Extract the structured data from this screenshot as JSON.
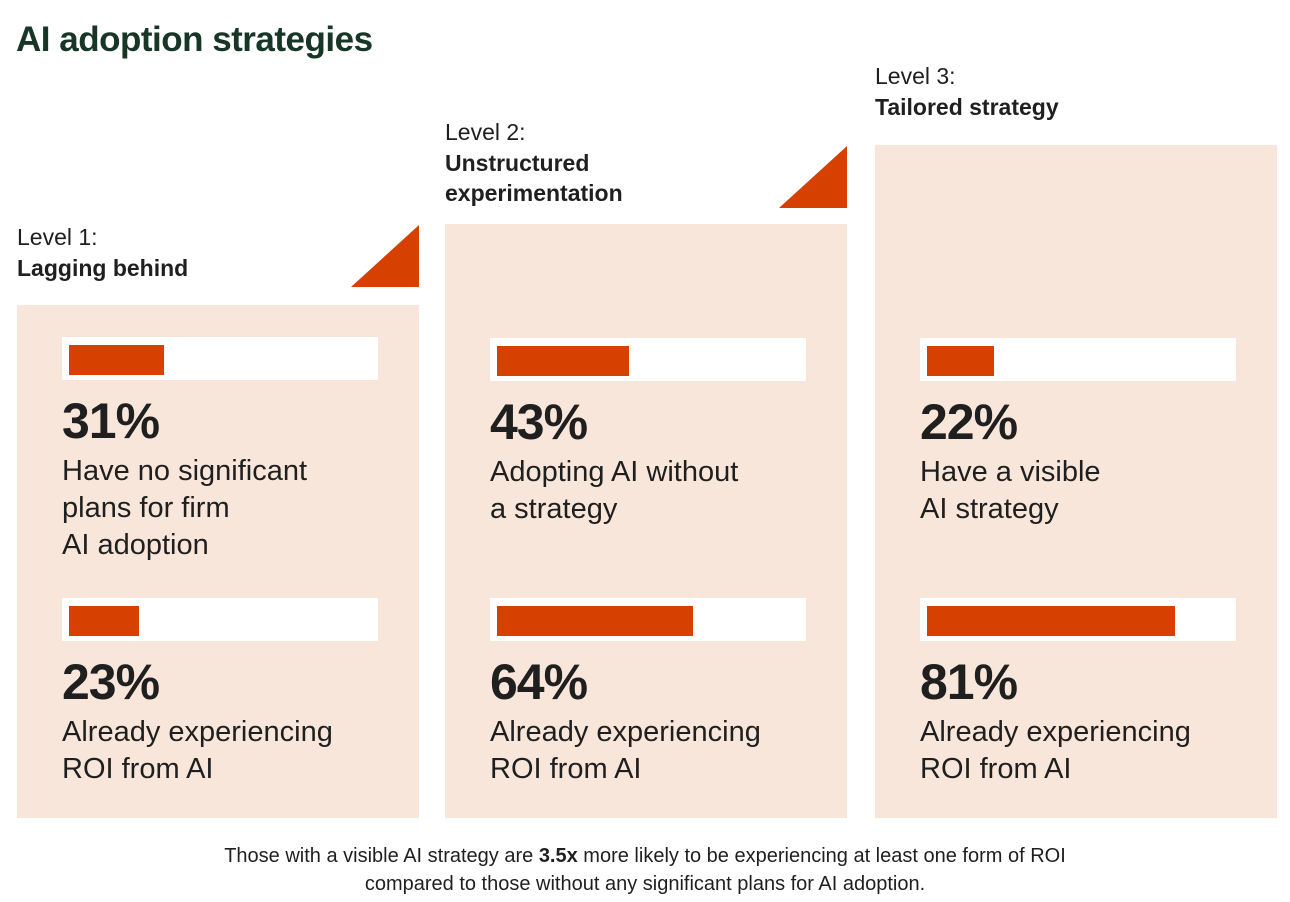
{
  "title": "AI adoption strategies",
  "colors": {
    "accent": "#d64000",
    "panel_bg": "#f8e6da",
    "title": "#173626",
    "text": "#1f1f1f"
  },
  "chart_data": {
    "type": "bar",
    "title": "AI adoption strategies",
    "categories": [
      "Level 1: Lagging behind",
      "Level 2: Unstructured experimentation",
      "Level 3: Tailored strategy"
    ],
    "series": [
      {
        "name": "",
        "values": [
          31,
          43,
          22
        ]
      },
      {
        "name": "",
        "values": [
          23,
          64,
          81
        ]
      }
    ],
    "ylim": [
      0,
      100
    ]
  },
  "levels": [
    {
      "level_label": "Level 1:",
      "name": "Lagging behind",
      "stats": [
        {
          "value": "31%",
          "fraction": 0.31,
          "desc": "Have no significant\nplans for firm\nAI adoption"
        },
        {
          "value": "23%",
          "fraction": 0.23,
          "desc": "Already experiencing\nROI from AI"
        }
      ]
    },
    {
      "level_label": "Level 2:",
      "name": "Unstructured\nexperimentation",
      "stats": [
        {
          "value": "43%",
          "fraction": 0.43,
          "desc": "Adopting AI without\na strategy"
        },
        {
          "value": "64%",
          "fraction": 0.64,
          "desc": "Already experiencing\nROI from AI"
        }
      ]
    },
    {
      "level_label": "Level 3:",
      "name": "Tailored strategy",
      "stats": [
        {
          "value": "22%",
          "fraction": 0.22,
          "desc": "Have a visible\nAI strategy"
        },
        {
          "value": "81%",
          "fraction": 0.81,
          "desc": "Already experiencing\nROI from AI"
        }
      ]
    }
  ],
  "footnote": {
    "before": "Those with a visible AI strategy are ",
    "bold": "3.5x",
    "after": " more likely to be experiencing at least one form of ROI",
    "line2": "compared to those without any significant plans for AI adoption."
  }
}
